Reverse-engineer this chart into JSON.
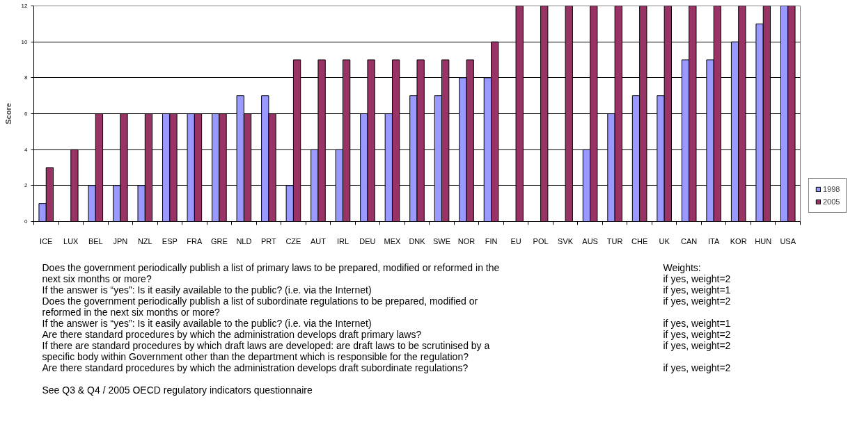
{
  "chart_data": {
    "type": "bar",
    "ylabel": "Score",
    "categories": [
      "ICE",
      "LUX",
      "BEL",
      "JPN",
      "NZL",
      "ESP",
      "FRA",
      "GRE",
      "NLD",
      "PRT",
      "CZE",
      "AUT",
      "IRL",
      "DEU",
      "MEX",
      "DNK",
      "SWE",
      "NOR",
      "FIN",
      "EU",
      "POL",
      "SVK",
      "AUS",
      "TUR",
      "CHE",
      "UK",
      "CAN",
      "ITA",
      "KOR",
      "HUN",
      "USA"
    ],
    "series": [
      {
        "name": "1998",
        "color": "#9999ff",
        "values": [
          1,
          null,
          2,
          2,
          2,
          6,
          6,
          6,
          7,
          7,
          2,
          4,
          4,
          6,
          6,
          7,
          7,
          8,
          8,
          null,
          null,
          null,
          4,
          6,
          7,
          7,
          9,
          9,
          10,
          11,
          12
        ]
      },
      {
        "name": "2005",
        "color": "#993366",
        "values": [
          3,
          4,
          6,
          6,
          6,
          6,
          6,
          6,
          6,
          6,
          9,
          9,
          9,
          9,
          9,
          9,
          9,
          9,
          10,
          12,
          12,
          12,
          12,
          12,
          12,
          12,
          12,
          12,
          12,
          12,
          12
        ]
      }
    ],
    "ylim": [
      0,
      12
    ],
    "yticks": [
      0,
      2,
      4,
      6,
      8,
      10,
      12
    ],
    "grid": "y",
    "legend": "bottom right",
    "annotations": [
      "Does the government periodically publish a list of primary laws to be prepared, modified or reformed in the",
      "next six months or more?",
      "If the answer is “yes”: Is it easily available to the public? (i.e. via the Internet)",
      "Does the government periodically publish a list of subordinate regulations to be prepared, modified or",
      "reformed in the next six months or more?",
      "If the answer is “yes”: Is it easily available to the public? (i.e. via the Internet)",
      "Are there standard procedures by which the administration develops draft primary laws?",
      "If there are standard procedures by which draft laws are developed: are draft laws to be scrutinised by a",
      "specific body within Government other than the department which is responsible for the regulation?",
      "Are there standard procedures by which the administration develops draft subordinate regulations?",
      "Weights:",
      "if yes, weight=2",
      "if yes, weight=1",
      "if yes, weight=2",
      "if yes, weight=1",
      "if yes, weight=2",
      "if yes, weight=2",
      "if yes, weight=2",
      "See Q3 & Q4 / 2005 OECD regulatory indicators questionnaire"
    ]
  }
}
